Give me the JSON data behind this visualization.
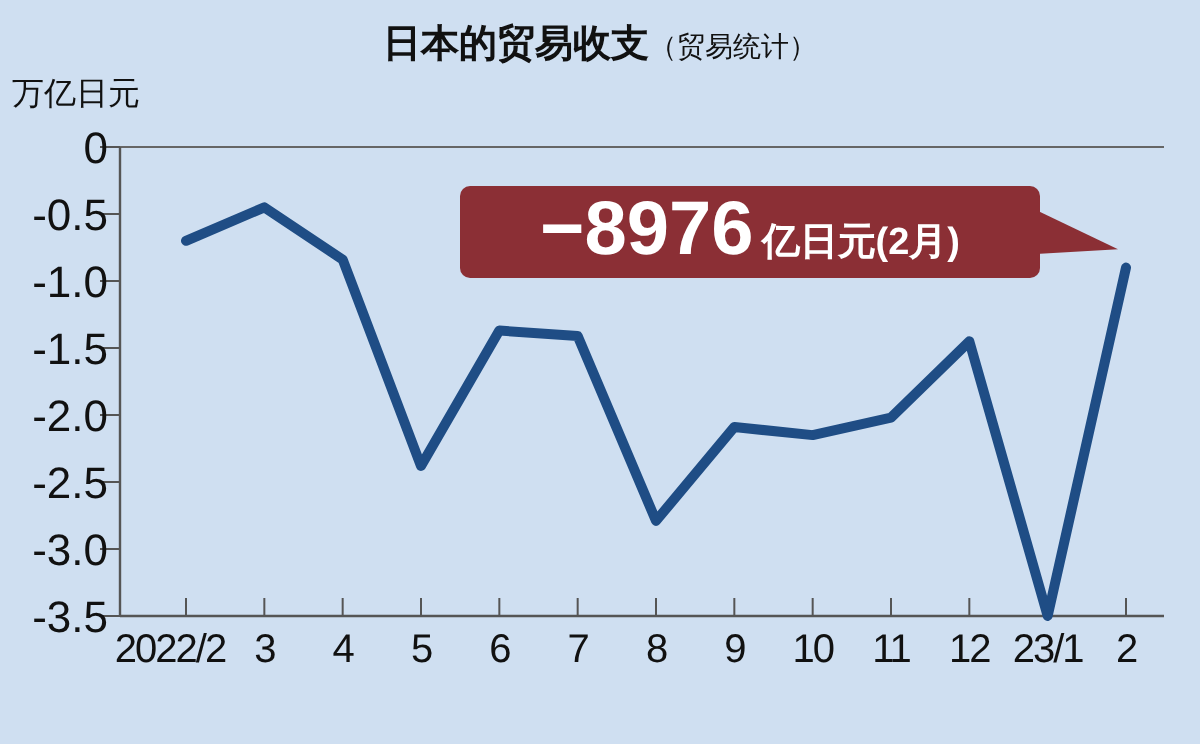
{
  "chart_data": {
    "type": "line",
    "title": "日本的贸易收支",
    "subtitle": "（贸易统计）",
    "ylabel": "万亿日元",
    "categories": [
      "2022/2",
      "3",
      "4",
      "5",
      "6",
      "7",
      "8",
      "9",
      "10",
      "11",
      "12",
      "23/1",
      "2"
    ],
    "series": [
      {
        "color": "#1f4d85",
        "values": [
          -0.7,
          -0.45,
          -0.84,
          -2.38,
          -1.37,
          -1.41,
          -2.79,
          -2.09,
          -2.15,
          -2.02,
          -1.45,
          -3.5,
          -0.9
        ]
      }
    ],
    "ylim": [
      -3.5,
      0
    ],
    "yticks": [
      0,
      {
        "value": -0.5,
        "label": "-0.5"
      },
      {
        "value": -1,
        "label": "-1.0"
      },
      {
        "value": -1.5,
        "label": "-1.5"
      },
      {
        "value": -2,
        "label": "-2.0"
      },
      {
        "value": -2.5,
        "label": "-2.5"
      },
      {
        "value": -3,
        "label": "-3.0"
      },
      {
        "value": -3.5,
        "label": "-3.5"
      }
    ],
    "annotations": [
      {
        "text": "−8976亿日元(2月)",
        "x": "2",
        "y": -0.8976
      }
    ]
  }
}
